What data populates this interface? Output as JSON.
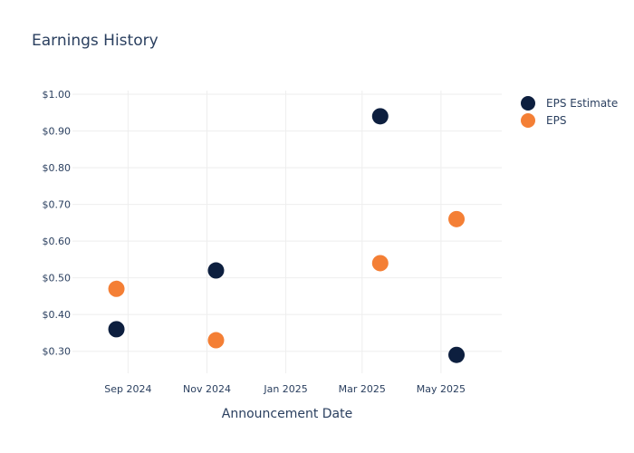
{
  "chart_data": {
    "type": "scatter",
    "title": "Earnings History",
    "xlabel": "Announcement Date",
    "ylabel": "",
    "x_ticks": [
      {
        "date": "2024-09-01",
        "label": "Sep 2024"
      },
      {
        "date": "2024-11-01",
        "label": "Nov 2024"
      },
      {
        "date": "2025-01-01",
        "label": "Jan 2025"
      },
      {
        "date": "2025-03-01",
        "label": "Mar 2025"
      },
      {
        "date": "2025-05-01",
        "label": "May 2025"
      }
    ],
    "y_ticks": [
      {
        "value": 0.3,
        "label": "$0.30"
      },
      {
        "value": 0.4,
        "label": "$0.40"
      },
      {
        "value": 0.5,
        "label": "$0.50"
      },
      {
        "value": 0.6,
        "label": "$0.60"
      },
      {
        "value": 0.7,
        "label": "$0.70"
      },
      {
        "value": 0.8,
        "label": "$0.80"
      },
      {
        "value": 0.9,
        "label": "$0.90"
      },
      {
        "value": 1.0,
        "label": "$1.00"
      }
    ],
    "xlim": [
      "2024-07-20",
      "2025-06-17"
    ],
    "ylim": [
      0.24,
      1.01
    ],
    "grid": true,
    "legend_position": "top-right",
    "series": [
      {
        "name": "EPS Estimate",
        "color": "#0d1f3f",
        "points": [
          {
            "x": "2024-08-23",
            "y": 0.36
          },
          {
            "x": "2024-11-08",
            "y": 0.52
          },
          {
            "x": "2025-03-15",
            "y": 0.94
          },
          {
            "x": "2025-05-13",
            "y": 0.29
          }
        ]
      },
      {
        "name": "EPS",
        "color": "#f47f35",
        "points": [
          {
            "x": "2024-08-23",
            "y": 0.47
          },
          {
            "x": "2024-11-08",
            "y": 0.33
          },
          {
            "x": "2025-03-15",
            "y": 0.54
          },
          {
            "x": "2025-05-13",
            "y": 0.66
          }
        ]
      }
    ]
  }
}
